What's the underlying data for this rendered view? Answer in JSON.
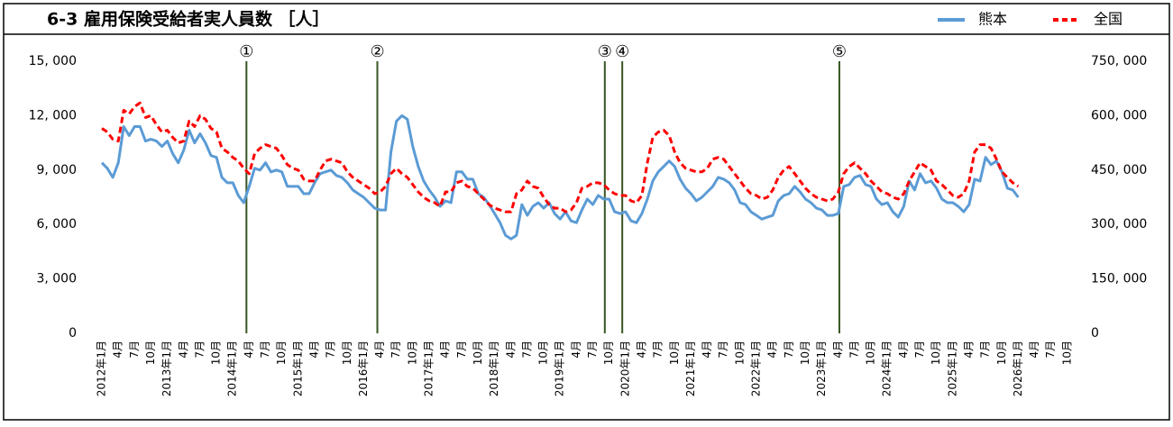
{
  "chart_data": {
    "type": "line",
    "title": "6-3 雇用保険受給者実人員数 ［人］",
    "categories": [
      "2012年1月",
      null,
      null,
      "4月",
      null,
      null,
      "7月",
      null,
      null,
      "10月",
      null,
      null,
      "2013年1月",
      null,
      null,
      "4月",
      null,
      null,
      "7月",
      null,
      null,
      "10月",
      null,
      null,
      "2014年1月",
      null,
      null,
      "4月",
      null,
      null,
      "7月",
      null,
      null,
      "10月",
      null,
      null,
      "2015年1月",
      null,
      null,
      "4月",
      null,
      null,
      "7月",
      null,
      null,
      "10月",
      null,
      null,
      "2016年1月",
      null,
      null,
      "4月",
      null,
      null,
      "7月",
      null,
      null,
      "10月",
      null,
      null,
      "2017年1月",
      null,
      null,
      "4月",
      null,
      null,
      "7月",
      null,
      null,
      "10月",
      null,
      null,
      "2018年1月",
      null,
      null,
      "4月",
      null,
      null,
      "7月",
      null,
      null,
      "10月",
      null,
      null,
      "2019年1月",
      null,
      null,
      "4月",
      null,
      null,
      "7月",
      null,
      null,
      "10月",
      null,
      null,
      "2020年1月",
      null,
      null,
      "4月",
      null,
      null,
      "7月",
      null,
      null,
      "10月",
      null,
      null,
      "2021年1月",
      null,
      null,
      "4月",
      null,
      null,
      "7月",
      null,
      null,
      "10月",
      null,
      null,
      "2022年1月",
      null,
      null,
      "4月",
      null,
      null,
      "7月",
      null,
      null,
      "10月",
      null,
      null,
      "2023年1月",
      null,
      null,
      "4月",
      null,
      null,
      "7月",
      null,
      null,
      "10月",
      null,
      null,
      "2024年1月",
      null,
      null,
      "4月",
      null,
      null,
      "7月",
      null,
      null,
      "10月",
      null,
      null,
      "2025年1月",
      null,
      null,
      "4月",
      null,
      null,
      "7月",
      null,
      null,
      "10月",
      null,
      null,
      "2026年1月",
      null,
      null,
      "4月",
      null,
      null,
      "7月",
      null,
      null,
      "10月",
      null,
      null
    ],
    "series": [
      {
        "name": "熊本",
        "color": "#5b9bd5",
        "line_style": "solid",
        "values": [
          9400,
          9100,
          8600,
          9400,
          11400,
          10900,
          11400,
          11400,
          10600,
          10700,
          10600,
          10300,
          10600,
          9900,
          9400,
          10100,
          11200,
          10500,
          11000,
          10500,
          9800,
          9700,
          8600,
          8300,
          8300,
          7600,
          7200,
          8100,
          9100,
          9000,
          9400,
          8900,
          9000,
          8900,
          8100,
          8100,
          8100,
          7700,
          7700,
          8300,
          8800,
          8900,
          9000,
          8700,
          8600,
          8300,
          7900,
          7700,
          7500,
          7200,
          6900,
          6800,
          6800,
          10000,
          11700,
          12000,
          11800,
          10300,
          9200,
          8400,
          7900,
          7500,
          7000,
          7300,
          7200,
          8900,
          8900,
          8500,
          8500,
          7700,
          7500,
          7100,
          6600,
          6100,
          5400,
          5200,
          5400,
          7100,
          6500,
          7000,
          7200,
          6900,
          7200,
          6600,
          6300,
          6700,
          6200,
          6100,
          6800,
          7400,
          7100,
          7600,
          7400,
          7400,
          6700,
          6600,
          6700,
          6200,
          6100,
          6600,
          7400,
          8400,
          8900,
          9200,
          9500,
          9200,
          8500,
          8000,
          7700,
          7300,
          7500,
          7800,
          8100,
          8600,
          8500,
          8300,
          7900,
          7200,
          7100,
          6700,
          6500,
          6300,
          6400,
          6500,
          7300,
          7600,
          7700,
          8100,
          7800,
          7400,
          7200,
          6900,
          6800,
          6500,
          6500,
          6600,
          8100,
          8200,
          8600,
          8700,
          8200,
          8100,
          7400,
          7100,
          7200,
          6700,
          6400,
          7000,
          8400,
          7900,
          8800,
          8300,
          8400,
          8000,
          7400,
          7200,
          7200,
          7000,
          6700,
          7100,
          8500,
          8400,
          9700,
          9300,
          9500,
          8900,
          8000,
          7900,
          7500,
          null,
          null,
          null,
          null,
          null,
          null,
          null,
          null,
          null,
          null,
          null
        ]
      },
      {
        "name": "全国",
        "color": "#ff0000",
        "line_style": "dashed",
        "axis": "y2",
        "values": [
          565000,
          555000,
          535000,
          530000,
          615000,
          605000,
          625000,
          635000,
          595000,
          600000,
          575000,
          555000,
          560000,
          540000,
          525000,
          530000,
          585000,
          570000,
          600000,
          590000,
          565000,
          555000,
          510000,
          500000,
          485000,
          475000,
          455000,
          440000,
          495000,
          510000,
          520000,
          515000,
          510000,
          490000,
          465000,
          455000,
          450000,
          425000,
          420000,
          420000,
          450000,
          475000,
          480000,
          475000,
          470000,
          445000,
          430000,
          420000,
          410000,
          400000,
          385000,
          390000,
          405000,
          440000,
          455000,
          440000,
          430000,
          410000,
          390000,
          375000,
          365000,
          360000,
          350000,
          390000,
          390000,
          415000,
          420000,
          405000,
          400000,
          385000,
          370000,
          355000,
          345000,
          340000,
          335000,
          335000,
          385000,
          395000,
          420000,
          405000,
          400000,
          375000,
          355000,
          345000,
          345000,
          335000,
          340000,
          360000,
          400000,
          405000,
          415000,
          415000,
          410000,
          395000,
          385000,
          380000,
          380000,
          365000,
          360000,
          380000,
          470000,
          540000,
          555000,
          560000,
          545000,
          500000,
          470000,
          455000,
          450000,
          445000,
          445000,
          455000,
          480000,
          485000,
          480000,
          460000,
          440000,
          420000,
          400000,
          385000,
          380000,
          370000,
          375000,
          395000,
          430000,
          450000,
          460000,
          440000,
          420000,
          400000,
          385000,
          375000,
          370000,
          365000,
          370000,
          390000,
          440000,
          460000,
          470000,
          455000,
          440000,
          420000,
          405000,
          390000,
          385000,
          375000,
          370000,
          385000,
          420000,
          445000,
          470000,
          460000,
          450000,
          420000,
          410000,
          395000,
          380000,
          375000,
          385000,
          420000,
          500000,
          520000,
          520000,
          510000,
          480000,
          445000,
          430000,
          415000,
          405000,
          null,
          null,
          null,
          null,
          null,
          null,
          null,
          null,
          null,
          null,
          null
        ]
      }
    ],
    "ylim": [
      0,
      15000
    ],
    "yticks": [
      0,
      {
        "value": 3000,
        "label": "3, 000"
      },
      {
        "value": 6000,
        "label": "6, 000"
      },
      {
        "value": 9000,
        "label": "9, 000"
      },
      {
        "value": 12000,
        "label": "12, 000"
      },
      {
        "value": 15000,
        "label": "15, 000"
      }
    ],
    "y2lim": [
      0,
      750000
    ],
    "y2ticks": [
      0,
      {
        "value": 150000,
        "label": "150, 000"
      },
      {
        "value": 300000,
        "label": "300, 000"
      },
      {
        "value": 450000,
        "label": "450, 000"
      },
      {
        "value": 600000,
        "label": "600, 000"
      },
      {
        "value": 750000,
        "label": "750, 000"
      }
    ],
    "markers": [
      {
        "label": "①",
        "x": 26.5
      },
      {
        "label": "②",
        "x": 50.5
      },
      {
        "label": "③",
        "x": 92.2
      },
      {
        "label": "④",
        "x": 95.4
      },
      {
        "label": "⑤",
        "x": 135.2
      }
    ],
    "marker_color": "#375623",
    "grid": false,
    "legend": "top-right"
  }
}
